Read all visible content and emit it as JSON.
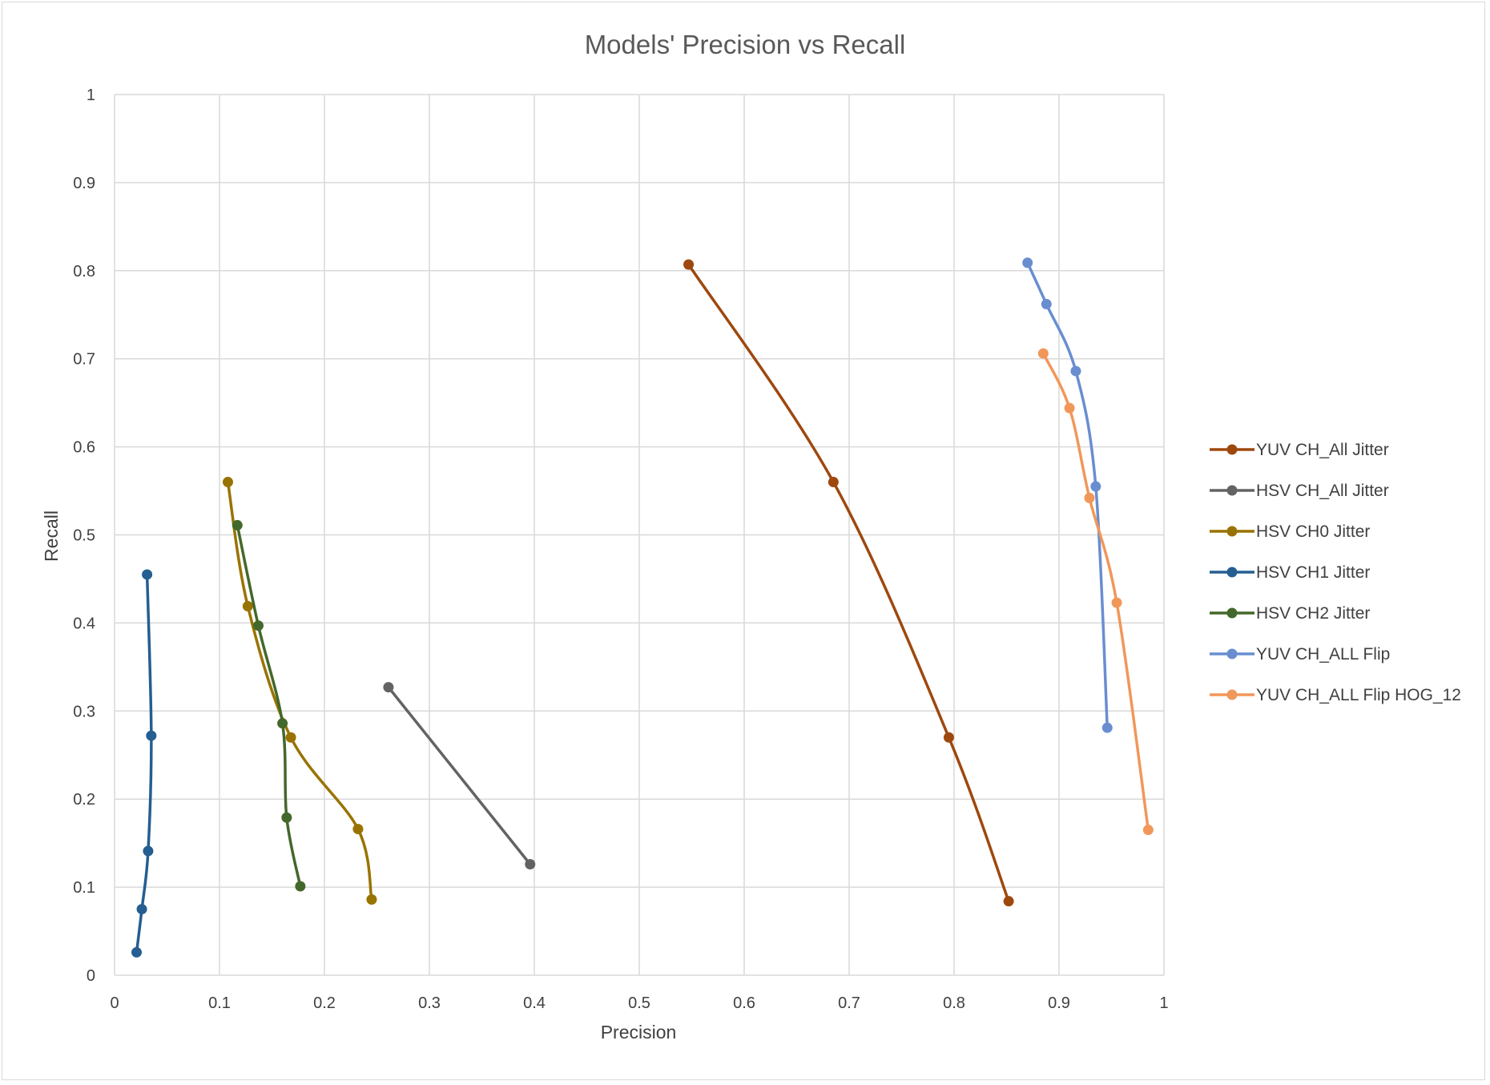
{
  "chart_data": {
    "type": "line",
    "title": "Models' Precision vs Recall",
    "xlabel": "Precision",
    "ylabel": "Recall",
    "xlim": [
      0,
      1
    ],
    "ylim": [
      0,
      1
    ],
    "xticks": [
      "0",
      "0.1",
      "0.2",
      "0.3",
      "0.4",
      "0.5",
      "0.6",
      "0.7",
      "0.8",
      "0.9",
      "1"
    ],
    "yticks": [
      "0",
      "0.1",
      "0.2",
      "0.3",
      "0.4",
      "0.5",
      "0.6",
      "0.7",
      "0.8",
      "0.9",
      "1"
    ],
    "grid": true,
    "legend_position": "right",
    "series": [
      {
        "name": "YUV CH_All Jitter",
        "color": "#9E480E",
        "points": [
          [
            0.547,
            0.807
          ],
          [
            0.685,
            0.56
          ],
          [
            0.795,
            0.27
          ],
          [
            0.852,
            0.084
          ]
        ]
      },
      {
        "name": "HSV CH_All Jitter",
        "color": "#636363",
        "points": [
          [
            0.261,
            0.327
          ],
          [
            0.396,
            0.126
          ]
        ]
      },
      {
        "name": "HSV CH0 Jitter",
        "color": "#997300",
        "points": [
          [
            0.108,
            0.56
          ],
          [
            0.127,
            0.419
          ],
          [
            0.168,
            0.27
          ],
          [
            0.232,
            0.166
          ],
          [
            0.245,
            0.086
          ]
        ]
      },
      {
        "name": "HSV CH1 Jitter",
        "color": "#255E91",
        "points": [
          [
            0.031,
            0.455
          ],
          [
            0.035,
            0.272
          ],
          [
            0.032,
            0.141
          ],
          [
            0.026,
            0.075
          ],
          [
            0.021,
            0.026
          ]
        ]
      },
      {
        "name": "HSV CH2 Jitter",
        "color": "#43682B",
        "points": [
          [
            0.117,
            0.511
          ],
          [
            0.137,
            0.397
          ],
          [
            0.16,
            0.286
          ],
          [
            0.164,
            0.179
          ],
          [
            0.177,
            0.101
          ]
        ]
      },
      {
        "name": "YUV CH_ALL Flip",
        "color": "#698ED0",
        "points": [
          [
            0.87,
            0.809
          ],
          [
            0.888,
            0.762
          ],
          [
            0.916,
            0.686
          ],
          [
            0.935,
            0.555
          ],
          [
            0.946,
            0.281
          ]
        ]
      },
      {
        "name": "YUV CH_ALL Flip HOG_12",
        "color": "#F1975A",
        "points": [
          [
            0.885,
            0.706
          ],
          [
            0.91,
            0.644
          ],
          [
            0.929,
            0.542
          ],
          [
            0.955,
            0.423
          ],
          [
            0.985,
            0.165
          ]
        ]
      }
    ]
  }
}
